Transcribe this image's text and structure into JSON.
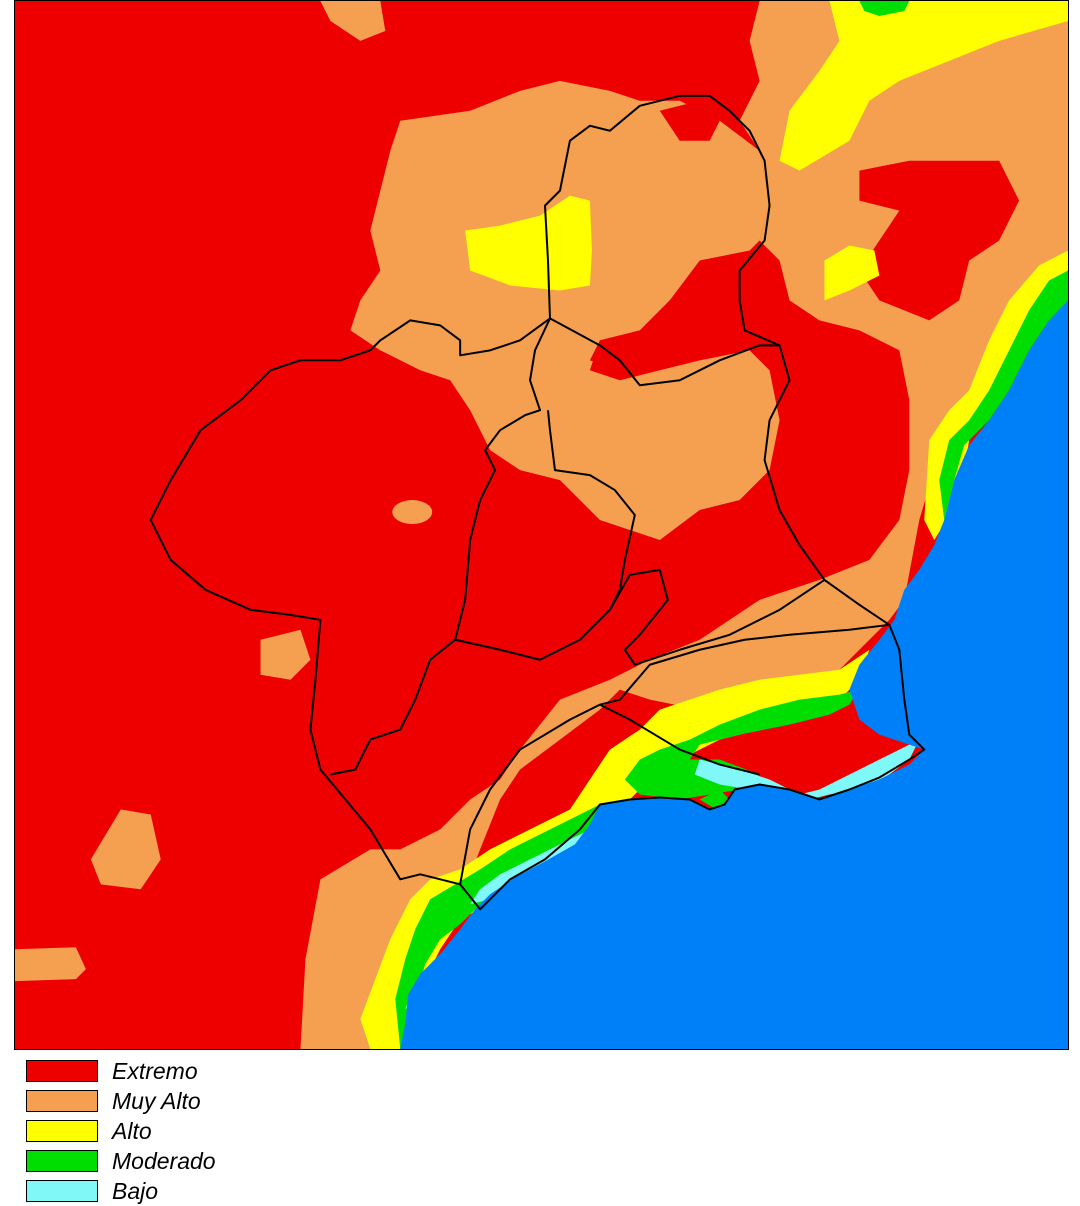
{
  "colors": {
    "extremo": "#ee0000",
    "muy_alto": "#f4a050",
    "alto": "#ffff00",
    "moderado": "#00dd00",
    "bajo": "#80f8f8",
    "sea": "#0080f8",
    "border": "#000000"
  },
  "legend": [
    {
      "label": "Extremo",
      "color": "#ee0000"
    },
    {
      "label": "Muy Alto",
      "color": "#f4a050"
    },
    {
      "label": "Alto",
      "color": "#ffff00"
    },
    {
      "label": "Moderado",
      "color": "#00dd00"
    },
    {
      "label": "Bajo",
      "color": "#80f8f8"
    }
  ]
}
